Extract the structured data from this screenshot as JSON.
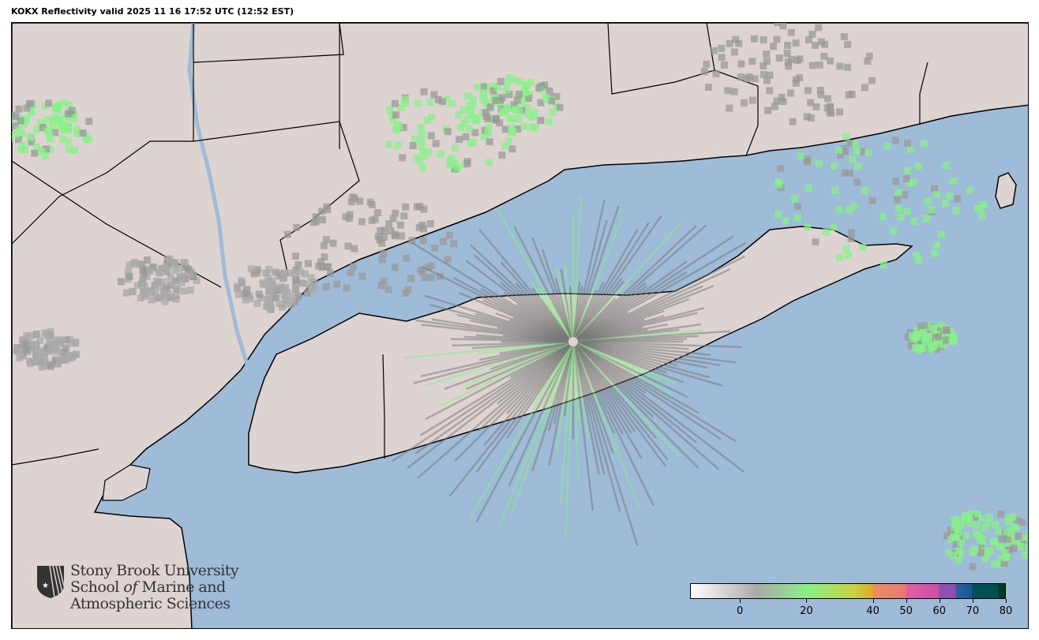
{
  "title": "KOKX Reflectivity valid 2025 11 16 17:52 UTC (12:52 EST)",
  "map": {
    "station": "KOKX",
    "product": "Reflectivity",
    "colors": {
      "water": "#9ebcd8",
      "land": "#ddd4d2",
      "border": "#000000"
    }
  },
  "logo": {
    "line1": "Stony Brook University",
    "line2a": "School ",
    "line2b": "of",
    "line2c": " Marine and",
    "line3": "Atmospheric Sciences"
  },
  "colorbar": {
    "min": -15,
    "max": 80,
    "unit_label": "",
    "ticks": [
      "0",
      "20",
      "40",
      "50",
      "60",
      "70",
      "80"
    ],
    "tick_values": [
      0,
      20,
      40,
      50,
      60,
      70,
      80
    ],
    "stops": [
      {
        "value": -15,
        "color": "#ffffff"
      },
      {
        "value": 5,
        "color": "#aaaaaa"
      },
      {
        "value": 20,
        "color": "#88f088"
      },
      {
        "value": 35,
        "color": "#c8d040"
      },
      {
        "value": 40,
        "color": "#e0a830"
      },
      {
        "value": 40.1,
        "color": "#e89060"
      },
      {
        "value": 50,
        "color": "#e87878"
      },
      {
        "value": 50.1,
        "color": "#e060a0"
      },
      {
        "value": 60,
        "color": "#c850a8"
      },
      {
        "value": 60.1,
        "color": "#9050b0"
      },
      {
        "value": 65,
        "color": "#9050b0"
      },
      {
        "value": 65.1,
        "color": "#3060a0"
      },
      {
        "value": 70,
        "color": "#105890"
      },
      {
        "value": 70.1,
        "color": "#005058"
      },
      {
        "value": 78,
        "color": "#005050"
      },
      {
        "value": 78.1,
        "color": "#003820"
      }
    ]
  }
}
